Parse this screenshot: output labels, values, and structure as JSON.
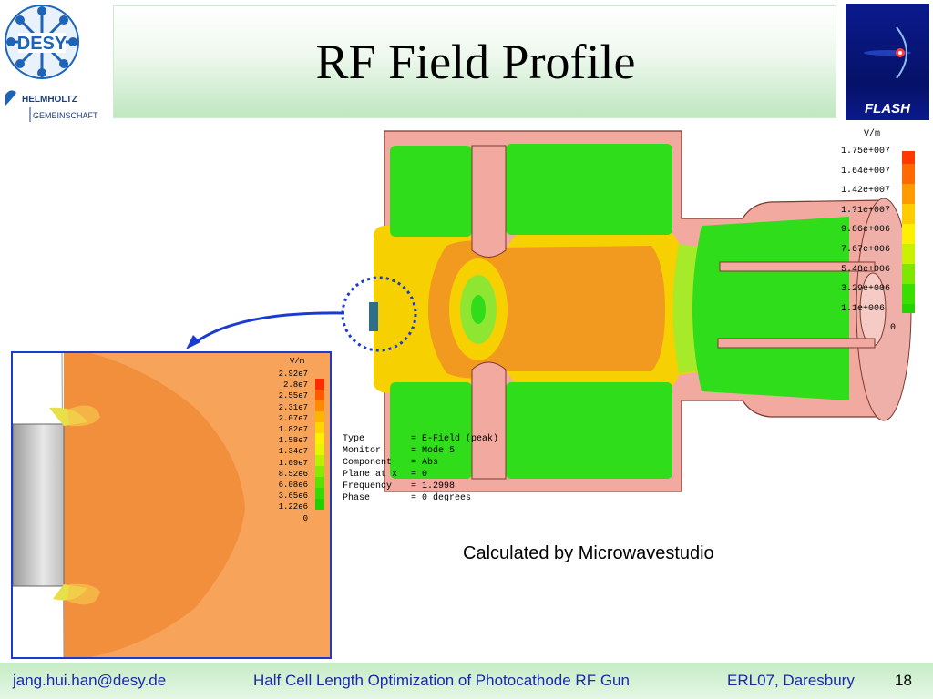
{
  "header": {
    "title": "RF Field Profile",
    "desy_logo_text": "DESY",
    "helmholtz_line1": "HELMHOLTZ",
    "helmholtz_line2": "GEMEINSCHAFT",
    "flash_label": "FLASH"
  },
  "main_sim": {
    "legend_unit": "V/m",
    "legend_values": [
      "1.75e+007",
      "1.64e+007",
      "1.42e+007",
      "1.?1e+007",
      "9.86e+006",
      "7.67e+006",
      "5.48e+006",
      "3.29e+006",
      "1.1e+006",
      "0"
    ],
    "info": [
      {
        "key": "Type",
        "value": "= E-Field (peak)"
      },
      {
        "key": "Monitor",
        "value": "= Mode 5"
      },
      {
        "key": "Component",
        "value": "= Abs"
      },
      {
        "key": "Plane at x",
        "value": "= 0"
      },
      {
        "key": "Frequency",
        "value": "= 1.2998"
      },
      {
        "key": "Phase",
        "value": "= 0 degrees"
      }
    ]
  },
  "inset_sim": {
    "legend_unit": "V/m",
    "legend_values": [
      "2.92e7",
      "2.8e7",
      "2.55e7",
      "2.31e7",
      "2.07e7",
      "1.82e7",
      "1.58e7",
      "1.34e7",
      "1.09e7",
      "8.52e6",
      "6.08e6",
      "3.65e6",
      "1.22e6",
      "0"
    ]
  },
  "caption": "Calculated by Microwavestudio",
  "footer": {
    "email": "jang.hui.han@desy.de",
    "title": "Half Cell Length Optimization of Photocathode RF Gun",
    "conference": "ERL07, Daresbury",
    "page": "18"
  },
  "colors": {
    "accent_blue": "#1a3bd1",
    "field_green": "#33dd22",
    "field_yellow": "#f5e000",
    "field_orange": "#f29a20",
    "wall_pink": "#f2a9a0"
  }
}
